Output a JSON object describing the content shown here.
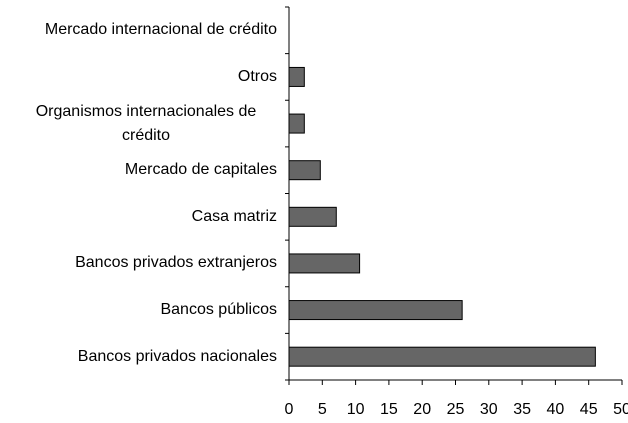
{
  "chart_data": {
    "type": "barh",
    "categories": [
      "Mercado internacional de crédito",
      "Otros",
      "Organismos internacionales de crédito",
      "Mercado de capitales",
      "Casa matriz",
      "Bancos privados extranjeros",
      "Bancos públicos",
      "Bancos privados nacionales"
    ],
    "values": [
      0,
      2.3,
      2.3,
      4.7,
      7.1,
      10.6,
      26,
      46
    ],
    "color": "#666666",
    "xlim": [
      0,
      50
    ],
    "xticks": [
      0,
      5,
      10,
      15,
      20,
      25,
      30,
      35,
      40,
      45,
      50
    ],
    "grid": false
  }
}
